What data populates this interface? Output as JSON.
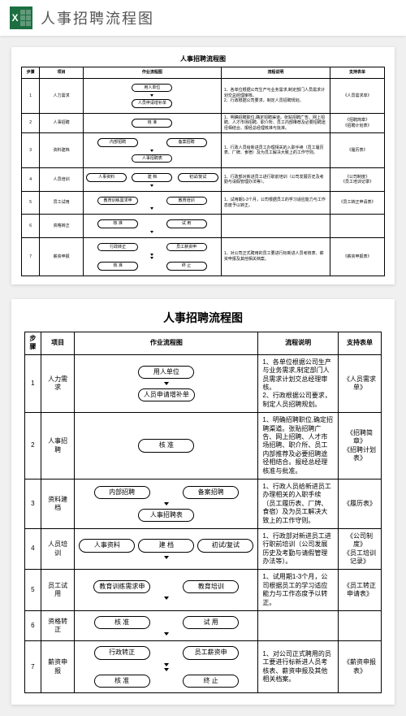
{
  "header": {
    "icon_label": "X",
    "title": "人事招聘流程图"
  },
  "doc": {
    "title": "人事招聘流程图",
    "columns": [
      "步骤",
      "项目",
      "作业流程图",
      "流程说明",
      "支持表单"
    ],
    "rows": [
      {
        "step": "1",
        "item": "人力需求",
        "flow_nodes": [
          "用人单位",
          "人员申请增补单"
        ],
        "desc": "1、各单位根据公司生产与业务需求,制定部门人员需求计划交总经理审核。\n2、行政根据公司要求，制定人员招聘规划。",
        "form": "《人员需求单》"
      },
      {
        "step": "2",
        "item": "人事招聘",
        "flow_nodes": [
          "核 准"
        ],
        "desc": "1、明确招聘职位,确定招聘渠道。张贴招聘广告、网上招聘、人才市场招聘、职介所、员工内部推荐及必要招聘途径相结合。报经总经理核准与批准。",
        "form": "《招聘简章》\n《招聘计划表》"
      },
      {
        "step": "3",
        "item": "资料建档",
        "flow_nodes_row": [
          "内部招聘",
          "备案招聘"
        ],
        "flow_nodes": [
          "人事招聘表"
        ],
        "desc": "1、行政人员给新进员工办理相关的入职手续（员工履历表、厂牌、食宿）及为员工解决大致上的工作守则。",
        "form": "《履历表》"
      },
      {
        "step": "4",
        "item": "人员培训",
        "flow_nodes_row": [
          "人事资料",
          "建 档",
          "初试/复试"
        ],
        "desc": "1、行政部对新进员工进行职前培训（公司发展历史及考勤与请假管理办法等）。",
        "form": "《公司制度》\n《员工培训记录》"
      },
      {
        "step": "5",
        "item": "员工试用",
        "flow_nodes_row": [
          "教育训练需求申",
          "教育培训"
        ],
        "desc": "1、试用期1-3个月，公司根据员工的学习适应能力与工作态度予以转正。",
        "form": "《员工转正申请表》"
      },
      {
        "step": "6",
        "item": "资格转正",
        "flow_nodes_row": [
          "核 准",
          "试 用"
        ],
        "desc": "",
        "form": ""
      },
      {
        "step": "7",
        "item": "薪资申报",
        "flow_nodes_row": [
          "行政转正",
          "员工薪资申"
        ],
        "flow_nodes_row2": [
          "核 准",
          "终 止"
        ],
        "desc": "1、对公司正式聘用的员工要进行标新进人员考核表、薪资申报及其他相关档案。",
        "form": "《薪资申报表》"
      }
    ]
  },
  "colors": {
    "bg": "#f0f0f0",
    "card_bg": "#ffffff",
    "border": "#000000",
    "excel_green": "#1d6f42",
    "text": "#333333"
  }
}
